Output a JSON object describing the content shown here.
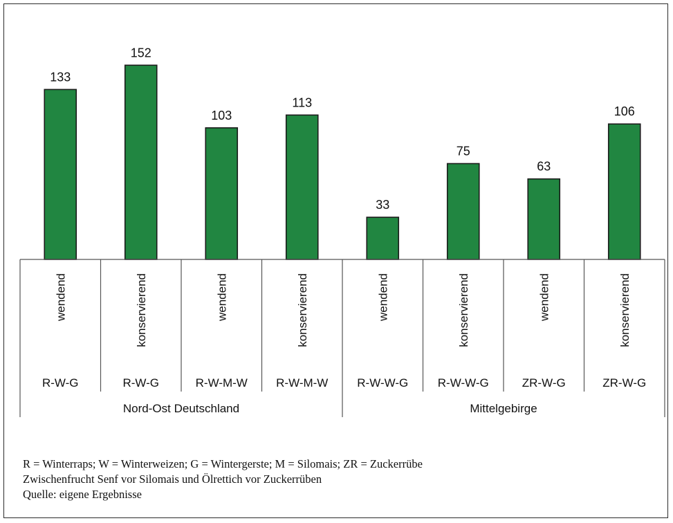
{
  "chart_data": {
    "type": "bar",
    "categories": [
      {
        "treatment": "wendend",
        "rotation": "R-W-G"
      },
      {
        "treatment": "konservierend",
        "rotation": "R-W-G"
      },
      {
        "treatment": "wendend",
        "rotation": "R-W-M-W"
      },
      {
        "treatment": "konservierend",
        "rotation": "R-W-M-W"
      },
      {
        "treatment": "wendend",
        "rotation": "R-W-W-G"
      },
      {
        "treatment": "konservierend",
        "rotation": "R-W-W-G"
      },
      {
        "treatment": "wendend",
        "rotation": "ZR-W-G"
      },
      {
        "treatment": "konservierend",
        "rotation": "ZR-W-G"
      }
    ],
    "values": [
      133,
      152,
      103,
      113,
      33,
      75,
      63,
      106
    ],
    "regions": [
      {
        "label": "Nord-Ost Deutschland",
        "span": 4
      },
      {
        "label": "Mittelgebirge",
        "span": 4
      }
    ],
    "ylim": [
      0,
      160
    ],
    "bar_color": "#218641",
    "bar_border": "#1b1b1b"
  },
  "notes": [
    "R = Winterraps; W = Winterweizen; G = Wintergerste; M = Silomais; ZR = Zuckerrübe",
    "Zwischenfrucht Senf vor Silomais und Ölrettich vor Zuckerrüben",
    "Quelle: eigene Ergebnisse"
  ]
}
